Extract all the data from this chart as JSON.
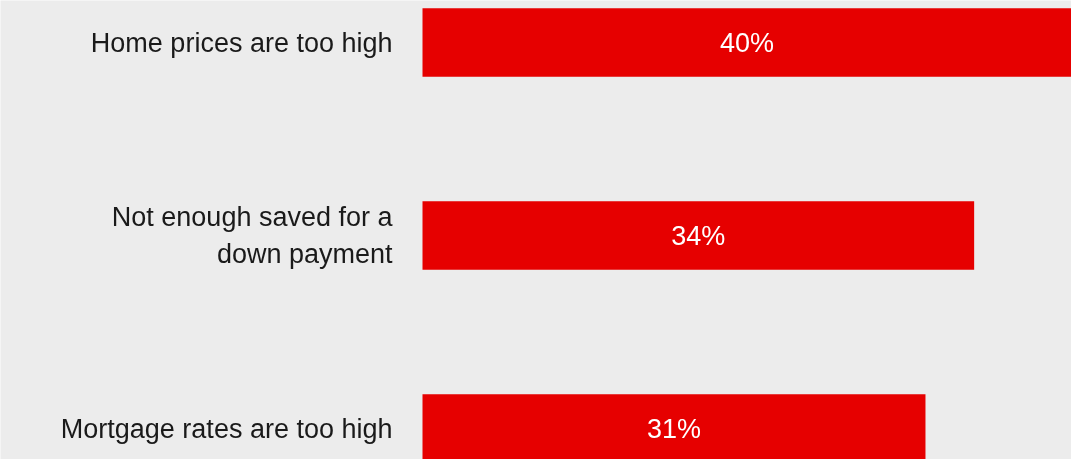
{
  "chart_data": {
    "type": "bar",
    "orientation": "horizontal",
    "categories": [
      "Home prices are too high",
      "Not enough saved for a down payment",
      "Mortgage rates are too high"
    ],
    "values": [
      40,
      34,
      31
    ],
    "value_labels": [
      "40%",
      "34%",
      "31%"
    ],
    "color": "#e60000",
    "xlim": [
      0,
      40
    ],
    "grid": false,
    "tick_labels": false
  }
}
